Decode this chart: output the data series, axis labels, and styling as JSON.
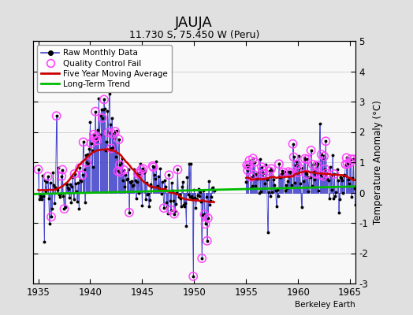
{
  "title": "JAUJA",
  "subtitle": "11.730 S, 75.450 W (Peru)",
  "ylabel": "Temperature Anomaly (°C)",
  "credit": "Berkeley Earth",
  "xlim": [
    1934.5,
    1965.5
  ],
  "ylim": [
    -3,
    5
  ],
  "yticks": [
    -3,
    -2,
    -1,
    0,
    1,
    2,
    3,
    4,
    5
  ],
  "xticks": [
    1935,
    1940,
    1945,
    1950,
    1955,
    1960,
    1965
  ],
  "fig_bg": "#e0e0e0",
  "plot_bg": "#f8f8f8",
  "raw_line_color": "#4444cc",
  "raw_dot_color": "#000000",
  "qc_color": "#ff44ff",
  "ma_color": "#cc0000",
  "trend_color": "#00bb00",
  "grid_color": "#cccccc"
}
